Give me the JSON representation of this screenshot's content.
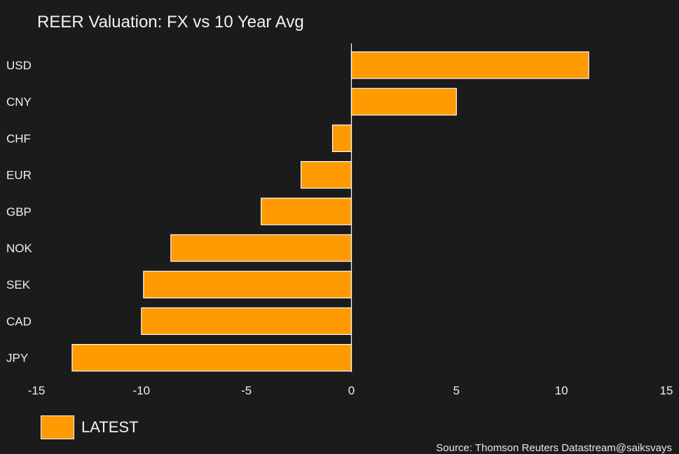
{
  "colors": {
    "background": "#1b1b1b",
    "bar_fill": "#ff9a00",
    "bar_stroke": "#ffffff",
    "text": "#f0f0f0"
  },
  "chart_data": {
    "type": "bar",
    "orientation": "horizontal",
    "title": "REER Valuation: FX vs 10 Year Avg",
    "xlabel": "",
    "ylabel": "",
    "categories": [
      "USD",
      "CNY",
      "CHF",
      "EUR",
      "GBP",
      "NOK",
      "SEK",
      "CAD",
      "JPY"
    ],
    "series": [
      {
        "name": "LATEST",
        "values": [
          11.3,
          5.0,
          -0.9,
          -2.4,
          -4.3,
          -8.6,
          -9.9,
          -10.0,
          -13.3
        ]
      }
    ],
    "xlim": [
      -15,
      15
    ],
    "xticks": [
      "-15",
      "-10",
      "-5",
      "0",
      "5",
      "10",
      "15"
    ],
    "grid": false,
    "legend": "bottom-left",
    "source": "Source: Thomson Reuters Datastream@saiksvays"
  }
}
